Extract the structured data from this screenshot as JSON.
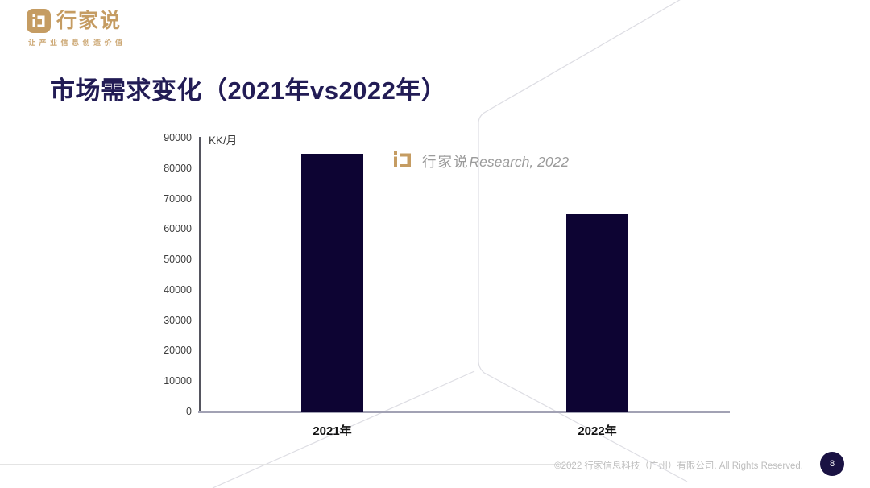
{
  "brand": {
    "logo_text": "行家说",
    "tagline": "让产业信息创造价值",
    "gold_color": "#c59c62"
  },
  "page_title": "市场需求变化（2021年vs2022年）",
  "watermark": {
    "cn": "行家说",
    "en": "Research, 2022"
  },
  "chart_data": {
    "type": "bar",
    "title": "市场需求变化（2021年vs2022年）",
    "unit_label": "KK/月",
    "categories": [
      "2021年",
      "2022年"
    ],
    "values": [
      85000,
      65000
    ],
    "ylim": [
      0,
      90000
    ],
    "ytick_step": 10000,
    "ytick_labels": [
      "0",
      "10000",
      "20000",
      "30000",
      "40000",
      "50000",
      "60000",
      "70000",
      "80000",
      "90000"
    ],
    "bar_color": "#0d0433",
    "grid": false,
    "legend": false,
    "xlabel": "",
    "ylabel": "KK/月"
  },
  "footer": {
    "copyright": "©2022 行家信息科技（广州）有限公司. All Rights Reserved.",
    "page_number": "8"
  }
}
